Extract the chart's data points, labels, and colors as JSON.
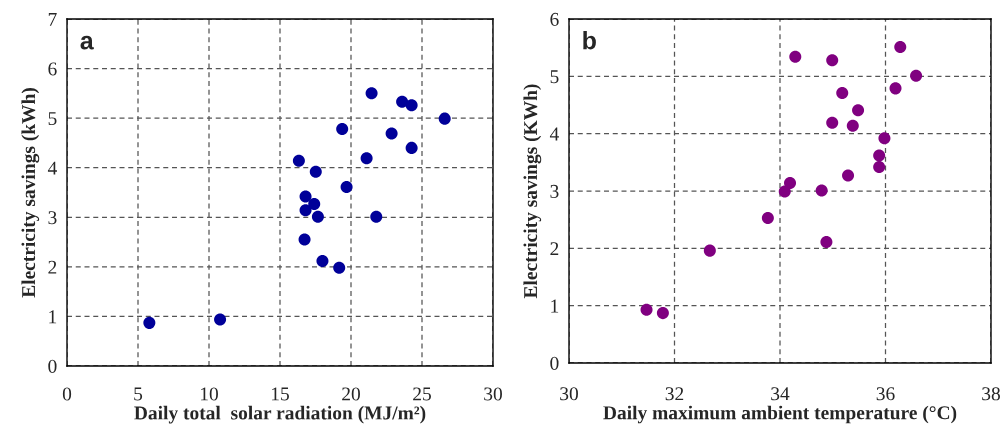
{
  "chart_data": [
    {
      "type": "scatter",
      "xlabel": "Daily total  solar radiation (MJ/m²)",
      "ylabel": "Electricity savings (kWh)",
      "annotations": [
        "a"
      ],
      "xlim": [
        0,
        30
      ],
      "ylim": [
        0,
        7
      ],
      "xticks": [
        0,
        5,
        10,
        15,
        20,
        25,
        30
      ],
      "yticks": [
        0,
        1,
        2,
        3,
        4,
        5,
        6,
        7
      ],
      "grid": true,
      "marker": "circle",
      "legend": false,
      "series": [
        {
          "color": "#000099",
          "x": [
            21.45,
            23.6,
            24.27,
            26.6,
            19.38,
            22.86,
            24.27,
            21.1,
            16.33,
            17.52,
            19.69,
            16.8,
            17.41,
            16.8,
            17.67,
            21.78,
            16.73,
            17.99,
            19.17,
            5.8,
            10.78
          ],
          "values": [
            5.5,
            5.33,
            5.26,
            4.99,
            4.78,
            4.69,
            4.4,
            4.19,
            4.14,
            3.92,
            3.61,
            3.42,
            3.27,
            3.14,
            3.01,
            3.01,
            2.55,
            2.12,
            1.98,
            0.87,
            0.94
          ]
        }
      ]
    },
    {
      "type": "scatter",
      "xlabel": "Daily maximum ambient temperature (°C)",
      "ylabel": "Electricity savings (KWh)",
      "annotations": [
        "b"
      ],
      "xlim": [
        30,
        38
      ],
      "ylim": [
        0,
        6
      ],
      "xticks": [
        30,
        32,
        34,
        36,
        38
      ],
      "yticks": [
        0,
        1,
        2,
        3,
        4,
        5,
        6
      ],
      "grid": true,
      "marker": "circle",
      "legend": false,
      "series": [
        {
          "color": "#800080",
          "x": [
            36.28,
            34.29,
            34.99,
            36.58,
            36.19,
            35.18,
            35.48,
            34.99,
            35.38,
            35.98,
            35.88,
            35.88,
            35.29,
            34.19,
            34.09,
            34.79,
            33.77,
            34.88,
            32.67,
            31.47,
            31.78
          ],
          "values": [
            5.51,
            5.34,
            5.28,
            5.01,
            4.79,
            4.71,
            4.41,
            4.19,
            4.14,
            3.92,
            3.62,
            3.42,
            3.27,
            3.14,
            2.99,
            3.01,
            2.53,
            2.11,
            1.96,
            0.93,
            0.87
          ]
        }
      ]
    }
  ]
}
